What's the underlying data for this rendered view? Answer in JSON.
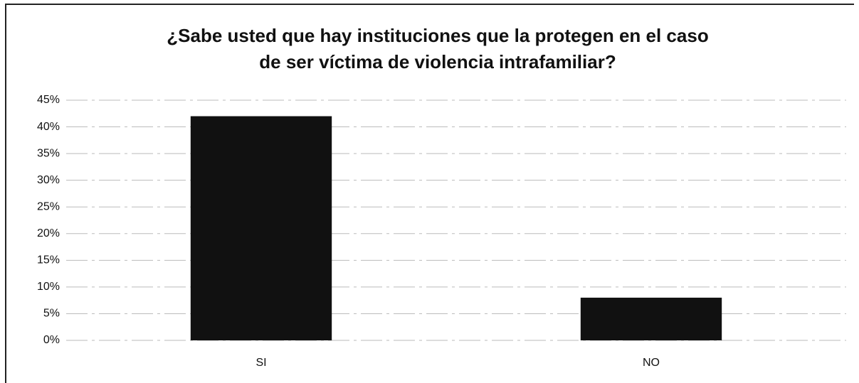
{
  "chart_data": {
    "type": "bar",
    "title": [
      "¿Sabe usted que hay instituciones que la protegen en el caso",
      "de ser víctima de violencia intrafamiliar?"
    ],
    "categories": [
      "SI",
      "NO"
    ],
    "values": [
      42,
      8
    ],
    "color": "#111111",
    "ylim": [
      0,
      45
    ],
    "yticks": [
      {
        "value": 0,
        "label": "0%"
      },
      {
        "value": 5,
        "label": "5%"
      },
      {
        "value": 10,
        "label": "10%"
      },
      {
        "value": 15,
        "label": "15%"
      },
      {
        "value": 20,
        "label": "20%"
      },
      {
        "value": 25,
        "label": "25%"
      },
      {
        "value": 30,
        "label": "30%"
      },
      {
        "value": 35,
        "label": "35%"
      },
      {
        "value": 40,
        "label": "40%"
      },
      {
        "value": 45,
        "label": "45%"
      }
    ],
    "grid": true
  }
}
